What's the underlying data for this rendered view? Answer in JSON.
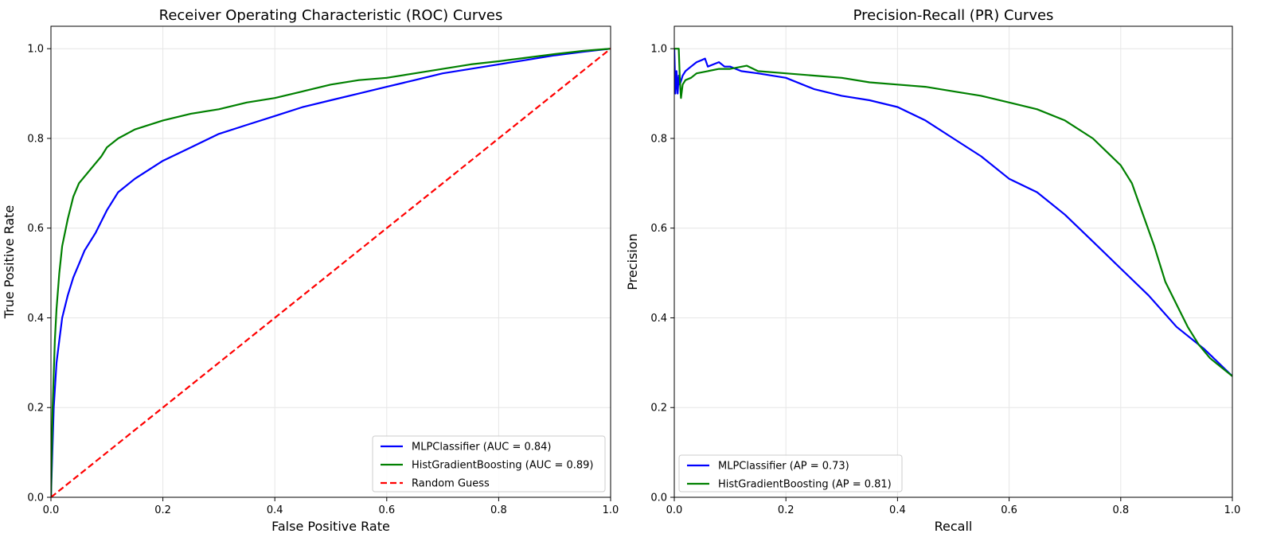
{
  "chart_data": [
    {
      "type": "line",
      "title": "Receiver Operating Characteristic (ROC) Curves",
      "xlabel": "False Positive Rate",
      "ylabel": "True Positive Rate",
      "xlim": [
        0,
        1
      ],
      "ylim": [
        0,
        1.05
      ],
      "xticks": [
        "0.0",
        "0.2",
        "0.4",
        "0.6",
        "0.8",
        "1.0"
      ],
      "yticks": [
        "0.0",
        "0.2",
        "0.4",
        "0.6",
        "0.8",
        "1.0"
      ],
      "grid": true,
      "legend_position": "lower right",
      "series": [
        {
          "name": "MLPClassifier (AUC = 0.84)",
          "color": "#0000ff",
          "style": "solid",
          "x": [
            0,
            0.005,
            0.01,
            0.015,
            0.02,
            0.03,
            0.04,
            0.05,
            0.06,
            0.08,
            0.1,
            0.12,
            0.15,
            0.2,
            0.25,
            0.3,
            0.35,
            0.4,
            0.45,
            0.5,
            0.55,
            0.6,
            0.65,
            0.7,
            0.75,
            0.8,
            0.85,
            0.9,
            0.95,
            1.0
          ],
          "y": [
            0,
            0.2,
            0.3,
            0.35,
            0.4,
            0.45,
            0.49,
            0.52,
            0.55,
            0.59,
            0.64,
            0.68,
            0.71,
            0.75,
            0.78,
            0.81,
            0.83,
            0.85,
            0.87,
            0.885,
            0.9,
            0.915,
            0.93,
            0.945,
            0.955,
            0.965,
            0.975,
            0.985,
            0.993,
            1.0
          ]
        },
        {
          "name": "HistGradientBoosting (AUC = 0.89)",
          "color": "#008000",
          "style": "solid",
          "x": [
            0,
            0.003,
            0.007,
            0.01,
            0.015,
            0.02,
            0.03,
            0.04,
            0.05,
            0.07,
            0.09,
            0.1,
            0.12,
            0.15,
            0.2,
            0.25,
            0.3,
            0.35,
            0.4,
            0.45,
            0.5,
            0.55,
            0.6,
            0.65,
            0.7,
            0.75,
            0.8,
            0.85,
            0.9,
            0.95,
            1.0
          ],
          "y": [
            0,
            0.2,
            0.35,
            0.42,
            0.5,
            0.56,
            0.62,
            0.67,
            0.7,
            0.73,
            0.76,
            0.78,
            0.8,
            0.82,
            0.84,
            0.855,
            0.865,
            0.88,
            0.89,
            0.905,
            0.92,
            0.93,
            0.935,
            0.945,
            0.955,
            0.965,
            0.972,
            0.98,
            0.988,
            0.995,
            1.0
          ]
        },
        {
          "name": "Random Guess",
          "color": "#ff0000",
          "style": "dashed",
          "x": [
            0,
            1
          ],
          "y": [
            0,
            1
          ]
        }
      ]
    },
    {
      "type": "line",
      "title": "Precision-Recall (PR) Curves",
      "xlabel": "Recall",
      "ylabel": "Precision",
      "xlim": [
        0,
        1
      ],
      "ylim": [
        0,
        1.05
      ],
      "xticks": [
        "0.0",
        "0.2",
        "0.4",
        "0.6",
        "0.8",
        "1.0"
      ],
      "yticks": [
        "0.0",
        "0.2",
        "0.4",
        "0.6",
        "0.8",
        "1.0"
      ],
      "grid": true,
      "legend_position": "lower left",
      "series": [
        {
          "name": "MLPClassifier (AP = 0.73)",
          "color": "#0000ff",
          "style": "solid",
          "x": [
            0.0,
            0.002,
            0.004,
            0.006,
            0.008,
            0.01,
            0.015,
            0.02,
            0.03,
            0.04,
            0.05,
            0.055,
            0.06,
            0.07,
            0.08,
            0.09,
            0.1,
            0.12,
            0.15,
            0.2,
            0.25,
            0.3,
            0.35,
            0.4,
            0.45,
            0.5,
            0.55,
            0.6,
            0.65,
            0.7,
            0.75,
            0.8,
            0.85,
            0.9,
            0.95,
            1.0
          ],
          "y": [
            1.0,
            0.9,
            0.95,
            0.9,
            0.94,
            0.92,
            0.94,
            0.95,
            0.96,
            0.97,
            0.975,
            0.978,
            0.96,
            0.965,
            0.97,
            0.96,
            0.96,
            0.95,
            0.945,
            0.935,
            0.91,
            0.895,
            0.885,
            0.87,
            0.84,
            0.8,
            0.76,
            0.71,
            0.68,
            0.63,
            0.57,
            0.51,
            0.45,
            0.38,
            0.33,
            0.27
          ]
        },
        {
          "name": "HistGradientBoosting (AP = 0.81)",
          "color": "#008000",
          "style": "solid",
          "x": [
            0.0,
            0.005,
            0.008,
            0.01,
            0.012,
            0.015,
            0.02,
            0.03,
            0.04,
            0.06,
            0.08,
            0.1,
            0.13,
            0.15,
            0.2,
            0.25,
            0.3,
            0.35,
            0.4,
            0.45,
            0.5,
            0.55,
            0.6,
            0.65,
            0.7,
            0.75,
            0.8,
            0.82,
            0.84,
            0.86,
            0.88,
            0.9,
            0.92,
            0.94,
            0.96,
            0.98,
            1.0
          ],
          "y": [
            1.0,
            1.0,
            1.0,
            0.93,
            0.89,
            0.92,
            0.93,
            0.935,
            0.945,
            0.95,
            0.955,
            0.955,
            0.962,
            0.95,
            0.945,
            0.94,
            0.935,
            0.925,
            0.92,
            0.915,
            0.905,
            0.895,
            0.88,
            0.865,
            0.84,
            0.8,
            0.74,
            0.7,
            0.63,
            0.56,
            0.48,
            0.43,
            0.38,
            0.34,
            0.31,
            0.29,
            0.27
          ]
        }
      ]
    }
  ]
}
